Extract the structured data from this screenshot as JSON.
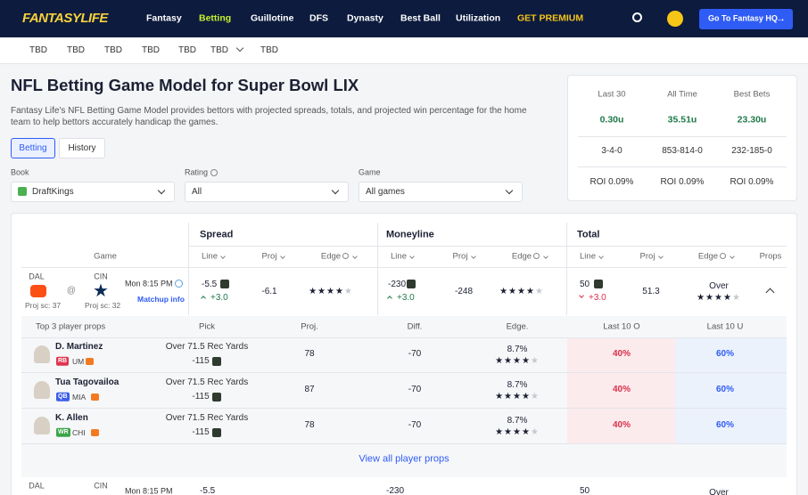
{
  "nav": {
    "logo": "FANTASYLIFE",
    "items": [
      "Fantasy",
      "Betting",
      "Guillotine",
      "DFS",
      "Dynasty",
      "Best Ball",
      "Utilization",
      "GET PREMIUM"
    ],
    "cta": "Go To Fantasy HQ"
  },
  "tabs": [
    "TBD",
    "TBD",
    "TBD",
    "TBD",
    "TBD",
    "TBD",
    "TBD"
  ],
  "header": {
    "title": "NFL Betting Game Model for Super Bowl LIX",
    "description": "Fantasy Life's NFL Betting Game Model provides bettors with projected spreads, totals, and projected win percentage for the home team to help bettors accurately handicap the games."
  },
  "toggle": [
    "Betting",
    "History"
  ],
  "filters": [
    {
      "label": "Book",
      "value": "DraftKings"
    },
    {
      "label": "Rating",
      "value": "All"
    },
    {
      "label": "Game",
      "value": "All games"
    }
  ],
  "stats": {
    "columns": [
      "Last 30",
      "All Time",
      "Best Bets"
    ],
    "rows": [
      [
        "0.30u",
        "35.51u",
        "23.30u"
      ],
      [
        "3-4-0",
        "853-814-0",
        "232-185-0"
      ],
      [
        "ROI 0.09%",
        "ROI 0.09%",
        "ROI 0.09%"
      ]
    ]
  },
  "table": {
    "groups": [
      "Spread",
      "Moneyline",
      "Total"
    ],
    "columns": [
      "Game",
      "Line",
      "Proj",
      "Edge",
      "Line",
      "Proj",
      "Edge",
      "Line",
      "Proj",
      "Edge",
      "Props"
    ],
    "games": [
      {
        "away": "DAL",
        "home": "CIN",
        "at": "@",
        "away_proj": "Proj sc: 37",
        "home_proj": "Proj sc: 32",
        "time": "Mon 8:15 PM",
        "matchup": "Matchup info",
        "spread": {
          "line": "-5.5",
          "move": "+3.0",
          "proj": "-6.1",
          "stars": 4
        },
        "moneyline": {
          "line": "-230",
          "move": "+3.0",
          "proj": "-248",
          "stars": 4
        },
        "total": {
          "line": "50",
          "move": "+3.0",
          "proj": "51.3",
          "pick": "Over",
          "stars": 4
        }
      },
      {
        "away": "DAL",
        "home": "CIN",
        "time": "Mon 8:15 PM",
        "spread": {
          "line": "-5.5"
        },
        "moneyline": {
          "line": "-230"
        },
        "total": {
          "line": "50",
          "pick": "Over"
        }
      }
    ]
  },
  "props": {
    "columns": [
      "Top 3 player props",
      "Pick",
      "Proj.",
      "Diff.",
      "Edge.",
      "Last 10 O",
      "Last 10 U"
    ],
    "rows": [
      {
        "name": "D. Martinez",
        "position": "RB",
        "team": "UM",
        "pick": "Over 71.5 Rec Yards",
        "odds": "-115",
        "proj": "78",
        "diff": "-70",
        "edge": "8.7%",
        "stars": 4,
        "last10_over": "40%",
        "last10_under": "60%"
      },
      {
        "name": "Tua Tagovailoa",
        "position": "QB",
        "team": "MIA",
        "pick": "Over 71.5 Rec Yards",
        "odds": "-115",
        "proj": "87",
        "diff": "-70",
        "edge": "8.7%",
        "stars": 4,
        "last10_over": "40%",
        "last10_under": "60%"
      },
      {
        "name": "K. Allen",
        "position": "WR",
        "team": "CHI",
        "pick": "Over 71.5 Rec Yards",
        "odds": "-115",
        "proj": "78",
        "diff": "-70",
        "edge": "8.7%",
        "stars": 4,
        "last10_over": "40%",
        "last10_under": "60%"
      }
    ],
    "link": "View all player props"
  }
}
